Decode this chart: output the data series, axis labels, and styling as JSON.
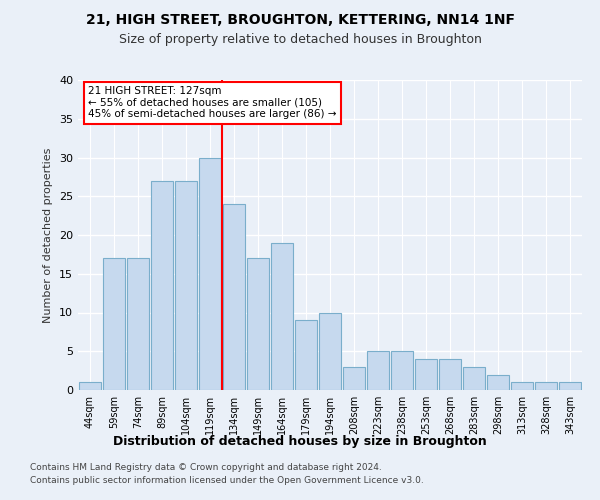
{
  "title1": "21, HIGH STREET, BROUGHTON, KETTERING, NN14 1NF",
  "title2": "Size of property relative to detached houses in Broughton",
  "xlabel": "Distribution of detached houses by size in Broughton",
  "ylabel": "Number of detached properties",
  "categories": [
    "44sqm",
    "59sqm",
    "74sqm",
    "89sqm",
    "104sqm",
    "119sqm",
    "134sqm",
    "149sqm",
    "164sqm",
    "179sqm",
    "194sqm",
    "208sqm",
    "223sqm",
    "238sqm",
    "253sqm",
    "268sqm",
    "283sqm",
    "298sqm",
    "313sqm",
    "328sqm",
    "343sqm"
  ],
  "bar_heights": [
    1,
    17,
    17,
    27,
    27,
    30,
    24,
    17,
    19,
    9,
    10,
    3,
    5,
    5,
    4,
    4,
    3,
    2,
    1,
    1,
    1
  ],
  "bar_color": "#c6d9ee",
  "bar_edge_color": "#7aaecb",
  "vline_x_index": 5,
  "vline_color": "red",
  "annotation_text": "21 HIGH STREET: 127sqm\n← 55% of detached houses are smaller (105)\n45% of semi-detached houses are larger (86) →",
  "annotation_box_color": "white",
  "annotation_box_edge": "red",
  "ylim": [
    0,
    40
  ],
  "yticks": [
    0,
    5,
    10,
    15,
    20,
    25,
    30,
    35,
    40
  ],
  "footer1": "Contains HM Land Registry data © Crown copyright and database right 2024.",
  "footer2": "Contains public sector information licensed under the Open Government Licence v3.0.",
  "bg_color": "#eaf0f8",
  "plot_bg_color": "#eaf0f8",
  "title1_fontsize": 10,
  "title2_fontsize": 9,
  "ylabel_fontsize": 8,
  "xlabel_fontsize": 9
}
